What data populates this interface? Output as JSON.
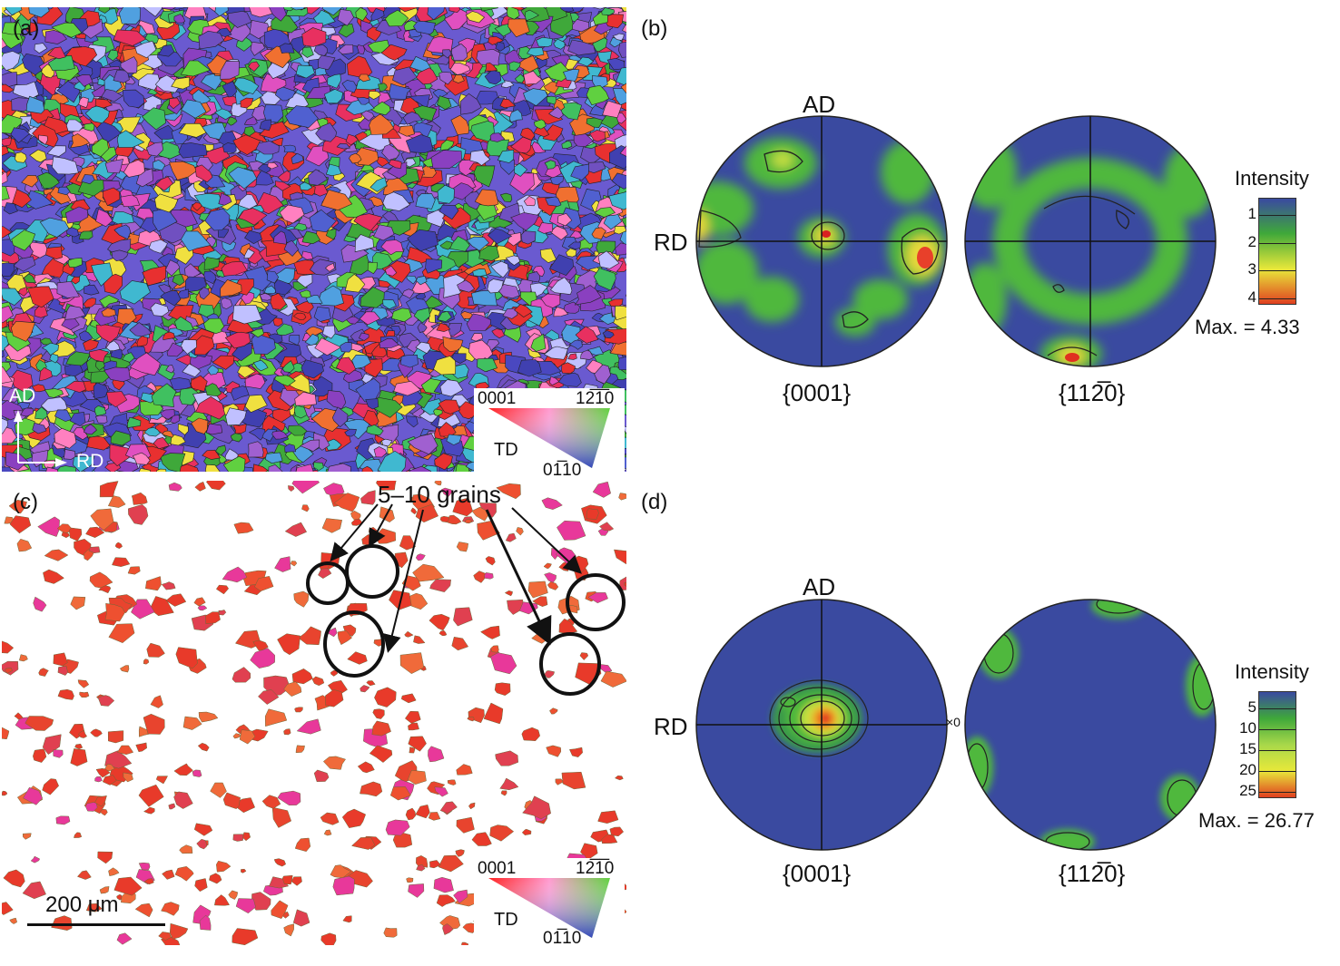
{
  "panels": {
    "a": {
      "label": "(a)"
    },
    "b": {
      "label": "(b)"
    },
    "c": {
      "label": "(c)"
    },
    "d": {
      "label": "(d)"
    }
  },
  "map_a": {
    "axis_ad": "AD",
    "axis_rd": "RD",
    "ipf_key": {
      "corner_top_left": "0001",
      "corner_top_right": "12̅1̅0",
      "corner_bottom": "01̅10",
      "center": "TD"
    }
  },
  "map_c": {
    "annotation": "5–10 grains",
    "scale_bar": "200 μm",
    "ipf_key": {
      "corner_top_left": "0001",
      "corner_top_right": "12̅1̅0",
      "corner_bottom": "01̅10",
      "center": "TD"
    }
  },
  "pole_figures_b": {
    "axis_ad": "AD",
    "axis_rd": "RD",
    "left_label": "{0001}",
    "right_label": "{112̅0}",
    "legend_title": "Intensity",
    "legend_ticks": [
      "1",
      "2",
      "3",
      "4"
    ],
    "legend_colors": [
      "#3a4aa0",
      "#3fa83a",
      "#e8e83a",
      "#e04020"
    ],
    "max_text": "Max. = 4.33"
  },
  "pole_figures_d": {
    "axis_ad": "AD",
    "axis_rd": "RD",
    "left_label": "{0001}",
    "right_label": "{112̅0}",
    "legend_title": "Intensity",
    "legend_ticks": [
      "5",
      "10",
      "15",
      "20",
      "25"
    ],
    "legend_colors": [
      "#3a4aa0",
      "#3fa83a",
      "#a8d84a",
      "#e8e83a",
      "#e04020"
    ],
    "max_text": "Max. = 26.77",
    "edge_mark": "×0"
  }
}
